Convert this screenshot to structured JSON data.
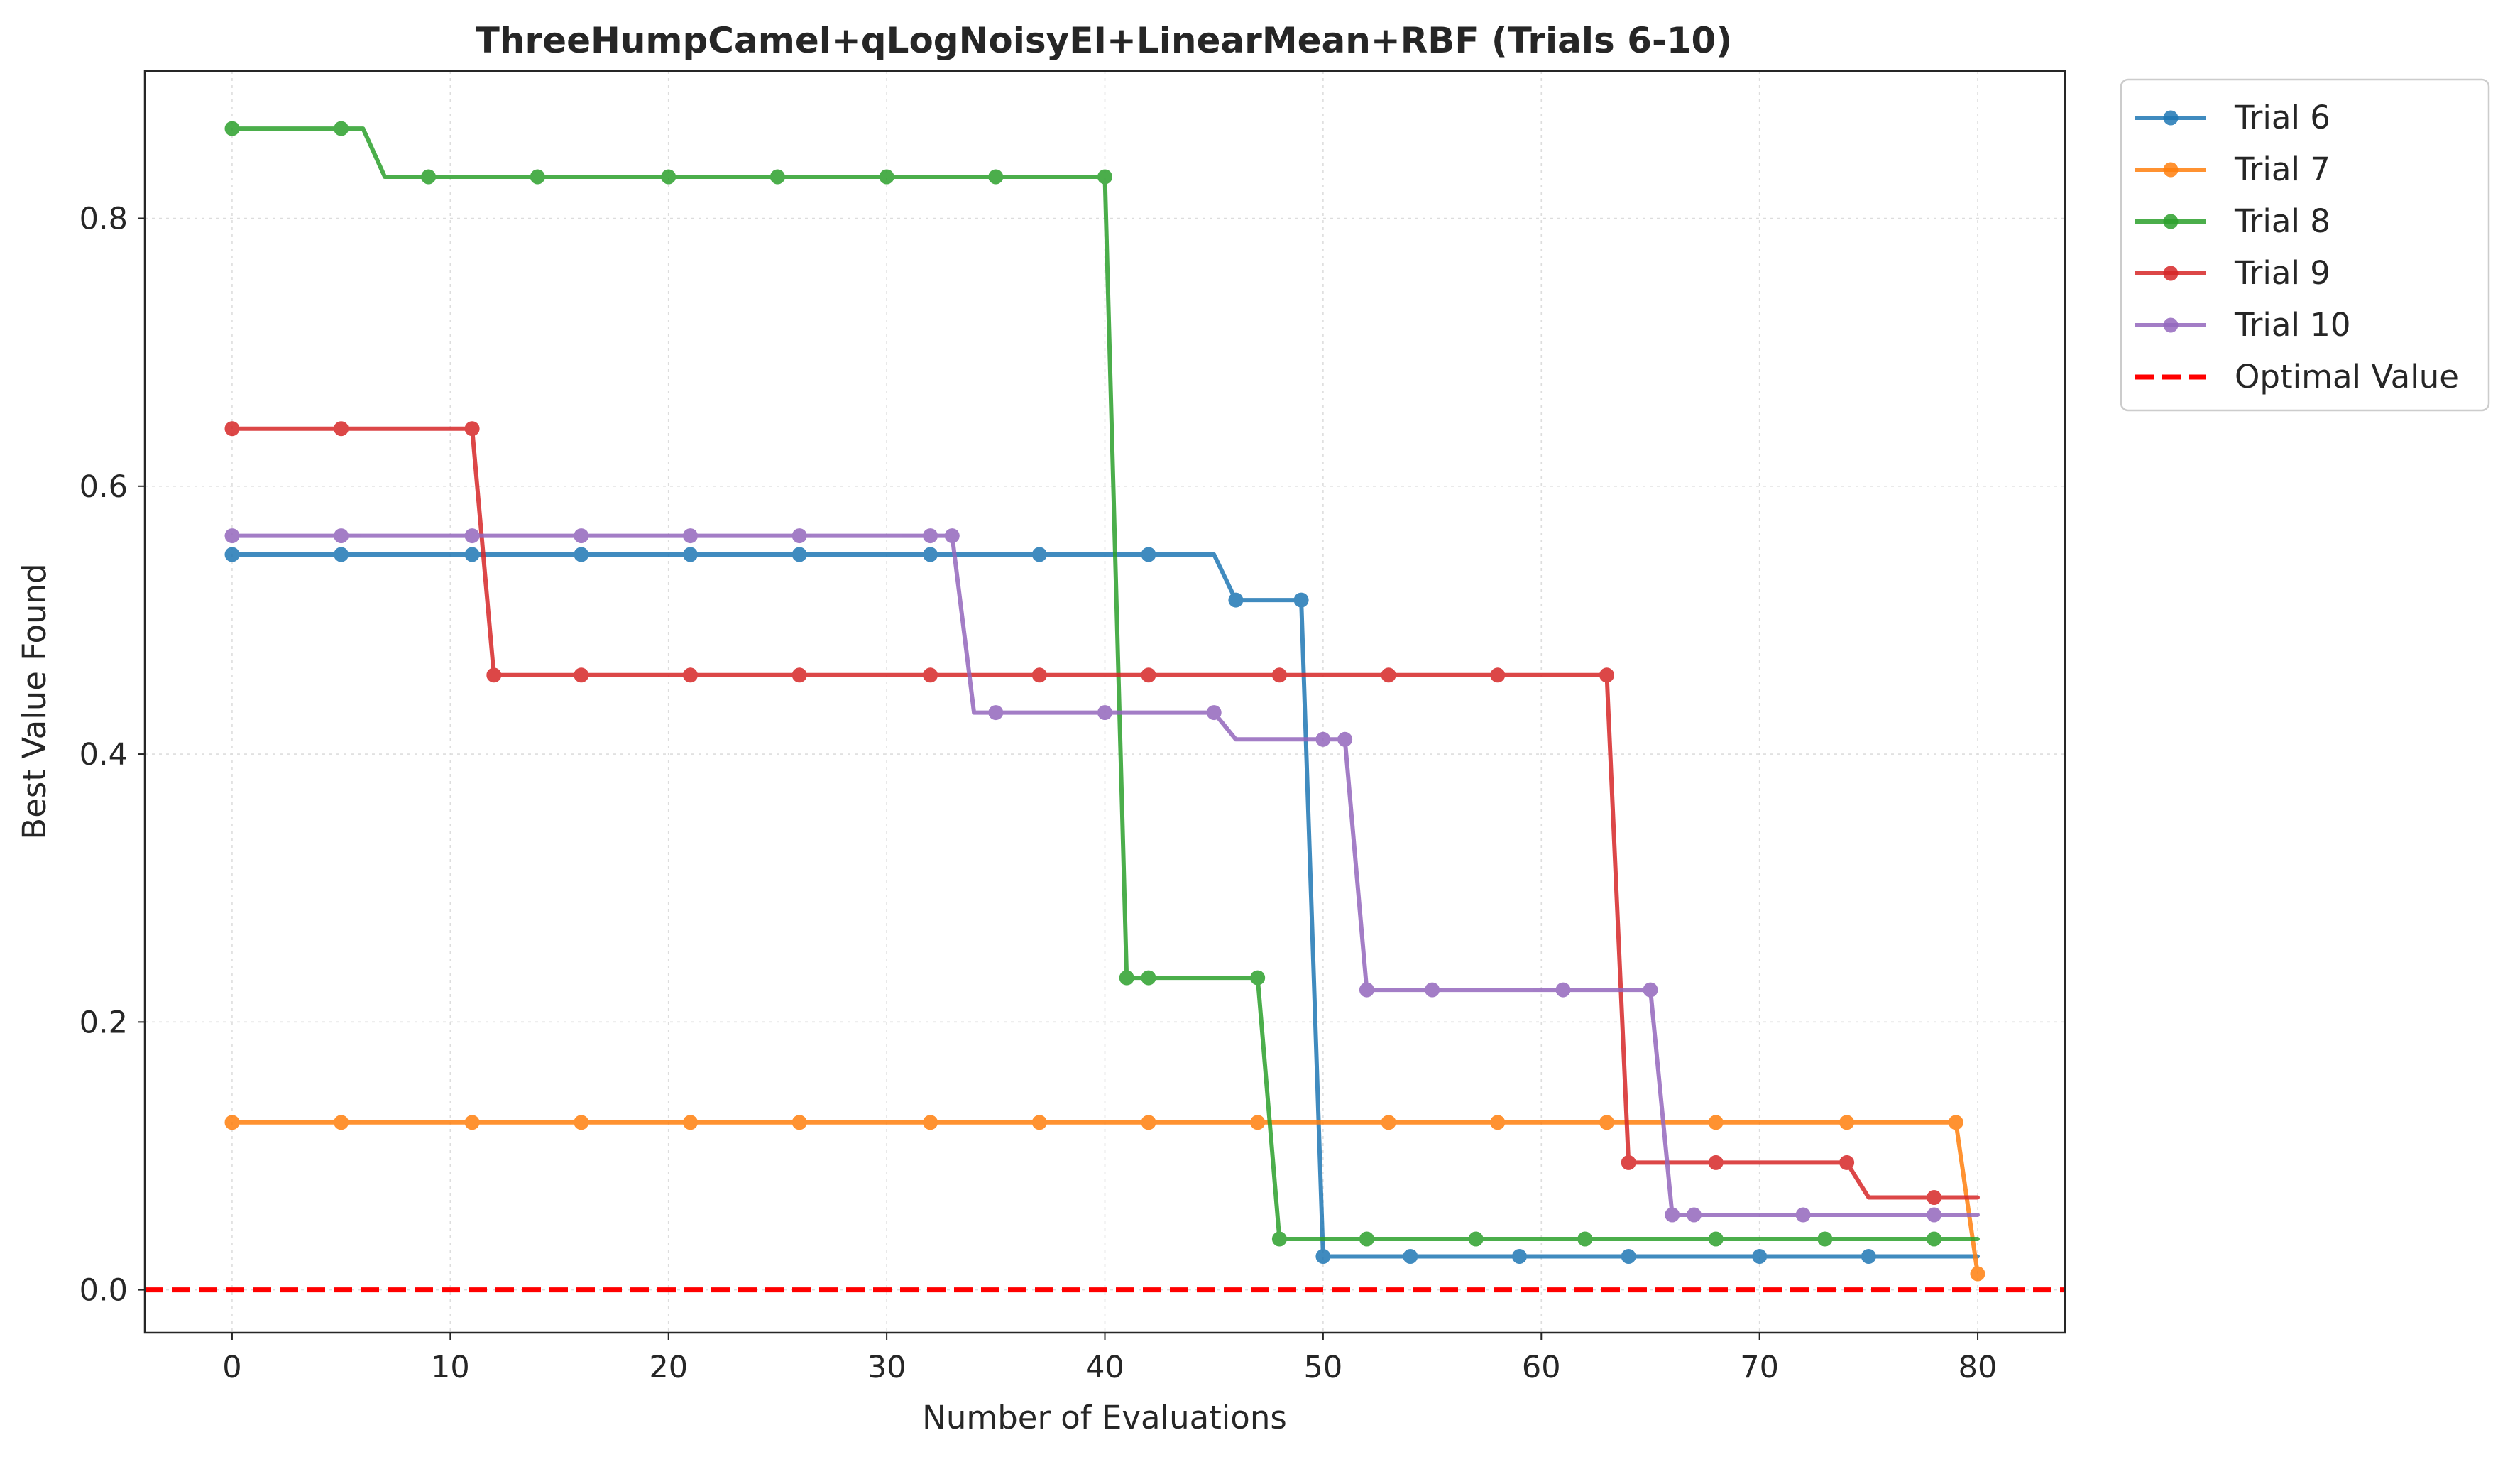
{
  "chart_data": {
    "type": "line",
    "title": "ThreeHumpCamel+qLogNoisyEI+LinearMean+RBF (Trials 6-10)",
    "xlabel": "Number of Evaluations",
    "ylabel": "Best Value Found",
    "xlim": [
      -4,
      84
    ],
    "ylim": [
      -0.032,
      0.91
    ],
    "xticks": [
      0,
      10,
      20,
      30,
      40,
      50,
      60,
      70,
      80
    ],
    "yticks": [
      0.0,
      0.2,
      0.4,
      0.6,
      0.8
    ],
    "xtick_labels": [
      "0",
      "10",
      "20",
      "30",
      "40",
      "50",
      "60",
      "70",
      "80"
    ],
    "ytick_labels": [
      "0.0",
      "0.2",
      "0.4",
      "0.6",
      "0.8"
    ],
    "grid": true,
    "legend_position": "outside-top-right",
    "series": [
      {
        "name": "Trial 6",
        "color": "#1f77b4",
        "line": [
          [
            0,
            0.549
          ],
          [
            45,
            0.549
          ],
          [
            46,
            0.515
          ],
          [
            49,
            0.515
          ],
          [
            50,
            0.025
          ],
          [
            80,
            0.025
          ]
        ],
        "markers": [
          [
            0,
            0.549
          ],
          [
            5,
            0.549
          ],
          [
            11,
            0.549
          ],
          [
            16,
            0.549
          ],
          [
            21,
            0.549
          ],
          [
            26,
            0.549
          ],
          [
            32,
            0.549
          ],
          [
            37,
            0.549
          ],
          [
            42,
            0.549
          ],
          [
            46,
            0.515
          ],
          [
            49,
            0.515
          ],
          [
            50,
            0.025
          ],
          [
            54,
            0.025
          ],
          [
            59,
            0.025
          ],
          [
            64,
            0.025
          ],
          [
            70,
            0.025
          ],
          [
            75,
            0.025
          ]
        ]
      },
      {
        "name": "Trial 7",
        "color": "#ff7f0e",
        "line": [
          [
            0,
            0.125
          ],
          [
            79,
            0.125
          ],
          [
            80,
            0.012
          ]
        ],
        "markers": [
          [
            0,
            0.125
          ],
          [
            5,
            0.125
          ],
          [
            11,
            0.125
          ],
          [
            16,
            0.125
          ],
          [
            21,
            0.125
          ],
          [
            26,
            0.125
          ],
          [
            32,
            0.125
          ],
          [
            37,
            0.125
          ],
          [
            42,
            0.125
          ],
          [
            47,
            0.125
          ],
          [
            53,
            0.125
          ],
          [
            58,
            0.125
          ],
          [
            63,
            0.125
          ],
          [
            68,
            0.125
          ],
          [
            74,
            0.125
          ],
          [
            79,
            0.125
          ],
          [
            80,
            0.012
          ]
        ]
      },
      {
        "name": "Trial 8",
        "color": "#2ca02c",
        "line": [
          [
            0,
            0.867
          ],
          [
            6,
            0.867
          ],
          [
            7,
            0.831
          ],
          [
            40,
            0.831
          ],
          [
            41,
            0.233
          ],
          [
            47,
            0.233
          ],
          [
            48,
            0.038
          ],
          [
            80,
            0.038
          ]
        ],
        "markers": [
          [
            0,
            0.867
          ],
          [
            5,
            0.867
          ],
          [
            9,
            0.831
          ],
          [
            14,
            0.831
          ],
          [
            20,
            0.831
          ],
          [
            25,
            0.831
          ],
          [
            30,
            0.831
          ],
          [
            35,
            0.831
          ],
          [
            40,
            0.831
          ],
          [
            41,
            0.233
          ],
          [
            42,
            0.233
          ],
          [
            47,
            0.233
          ],
          [
            48,
            0.038
          ],
          [
            52,
            0.038
          ],
          [
            57,
            0.038
          ],
          [
            62,
            0.038
          ],
          [
            68,
            0.038
          ],
          [
            73,
            0.038
          ],
          [
            78,
            0.038
          ]
        ]
      },
      {
        "name": "Trial 9",
        "color": "#d62728",
        "line": [
          [
            0,
            0.643
          ],
          [
            11,
            0.643
          ],
          [
            12,
            0.459
          ],
          [
            63,
            0.459
          ],
          [
            64,
            0.095
          ],
          [
            74,
            0.095
          ],
          [
            75,
            0.069
          ],
          [
            80,
            0.069
          ]
        ],
        "markers": [
          [
            0,
            0.643
          ],
          [
            5,
            0.643
          ],
          [
            11,
            0.643
          ],
          [
            12,
            0.459
          ],
          [
            16,
            0.459
          ],
          [
            21,
            0.459
          ],
          [
            26,
            0.459
          ],
          [
            32,
            0.459
          ],
          [
            37,
            0.459
          ],
          [
            42,
            0.459
          ],
          [
            48,
            0.459
          ],
          [
            53,
            0.459
          ],
          [
            58,
            0.459
          ],
          [
            63,
            0.459
          ],
          [
            64,
            0.095
          ],
          [
            68,
            0.095
          ],
          [
            74,
            0.095
          ],
          [
            78,
            0.069
          ]
        ]
      },
      {
        "name": "Trial 10",
        "color": "#9467bd",
        "line": [
          [
            0,
            0.563
          ],
          [
            33,
            0.563
          ],
          [
            34,
            0.431
          ],
          [
            45,
            0.431
          ],
          [
            46,
            0.411
          ],
          [
            51,
            0.411
          ],
          [
            52,
            0.224
          ],
          [
            65,
            0.224
          ],
          [
            66,
            0.056
          ],
          [
            80,
            0.056
          ]
        ],
        "markers": [
          [
            0,
            0.563
          ],
          [
            5,
            0.563
          ],
          [
            11,
            0.563
          ],
          [
            16,
            0.563
          ],
          [
            21,
            0.563
          ],
          [
            26,
            0.563
          ],
          [
            32,
            0.563
          ],
          [
            33,
            0.563
          ],
          [
            35,
            0.431
          ],
          [
            40,
            0.431
          ],
          [
            45,
            0.431
          ],
          [
            50,
            0.411
          ],
          [
            51,
            0.411
          ],
          [
            52,
            0.224
          ],
          [
            55,
            0.224
          ],
          [
            61,
            0.224
          ],
          [
            65,
            0.224
          ],
          [
            66,
            0.056
          ],
          [
            67,
            0.056
          ],
          [
            72,
            0.056
          ],
          [
            78,
            0.056
          ]
        ]
      }
    ],
    "reference_line": {
      "name": "Optimal Value",
      "y": 0.0,
      "color": "#ff0000",
      "style": "dashed"
    }
  }
}
